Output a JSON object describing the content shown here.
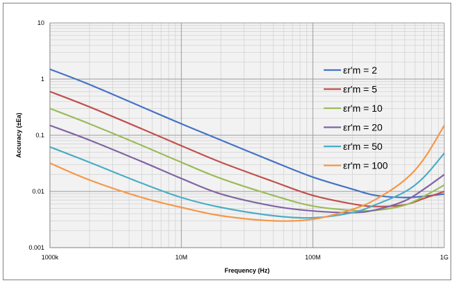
{
  "chart_data": {
    "type": "line",
    "title": "",
    "xlabel": "Frequency (Hz)",
    "ylabel": "Accuracy (±Ea)",
    "x_scale": "log",
    "y_scale": "log",
    "xlim": [
      1000000,
      1000000000
    ],
    "ylim": [
      0.001,
      10
    ],
    "grid": true,
    "legend_position": "right",
    "x_ticks": [
      {
        "value": 1000000,
        "label": "1000k"
      },
      {
        "value": 10000000,
        "label": "10M"
      },
      {
        "value": 100000000,
        "label": "100M"
      },
      {
        "value": 1000000000,
        "label": "1G"
      }
    ],
    "y_ticks": [
      {
        "value": 0.001,
        "label": "0.001"
      },
      {
        "value": 0.01,
        "label": "0.01"
      },
      {
        "value": 0.1,
        "label": "0.1"
      },
      {
        "value": 1,
        "label": "1"
      },
      {
        "value": 10,
        "label": "10"
      }
    ],
    "series": [
      {
        "name": "εr'm = 2",
        "color": "#4472c4",
        "points": [
          [
            1000000,
            1.5
          ],
          [
            2000000,
            0.8
          ],
          [
            5000000,
            0.32
          ],
          [
            10000000,
            0.16
          ],
          [
            20000000,
            0.082
          ],
          [
            50000000,
            0.034
          ],
          [
            100000000,
            0.018
          ],
          [
            200000000,
            0.011
          ],
          [
            300000000,
            0.0085
          ],
          [
            500000000,
            0.0078
          ],
          [
            700000000,
            0.0082
          ],
          [
            1000000000,
            0.009
          ]
        ]
      },
      {
        "name": "εr'm = 5",
        "color": "#c0504d",
        "points": [
          [
            1000000,
            0.6
          ],
          [
            2000000,
            0.32
          ],
          [
            5000000,
            0.13
          ],
          [
            10000000,
            0.065
          ],
          [
            20000000,
            0.033
          ],
          [
            50000000,
            0.015
          ],
          [
            100000000,
            0.0085
          ],
          [
            200000000,
            0.006
          ],
          [
            300000000,
            0.0054
          ],
          [
            500000000,
            0.0058
          ],
          [
            700000000,
            0.0075
          ],
          [
            1000000000,
            0.01
          ]
        ]
      },
      {
        "name": "εr'm = 10",
        "color": "#9bbb59",
        "points": [
          [
            1000000,
            0.3
          ],
          [
            2000000,
            0.16
          ],
          [
            5000000,
            0.066
          ],
          [
            10000000,
            0.033
          ],
          [
            20000000,
            0.017
          ],
          [
            50000000,
            0.0085
          ],
          [
            100000000,
            0.0055
          ],
          [
            200000000,
            0.0046
          ],
          [
            300000000,
            0.0046
          ],
          [
            500000000,
            0.0057
          ],
          [
            700000000,
            0.0082
          ],
          [
            1000000000,
            0.013
          ]
        ]
      },
      {
        "name": "εr'm = 20",
        "color": "#8064a2",
        "points": [
          [
            1000000,
            0.15
          ],
          [
            2000000,
            0.082
          ],
          [
            5000000,
            0.034
          ],
          [
            10000000,
            0.017
          ],
          [
            20000000,
            0.009
          ],
          [
            50000000,
            0.0055
          ],
          [
            100000000,
            0.0045
          ],
          [
            200000000,
            0.0042
          ],
          [
            300000000,
            0.0047
          ],
          [
            500000000,
            0.0068
          ],
          [
            700000000,
            0.011
          ],
          [
            1000000000,
            0.02
          ]
        ]
      },
      {
        "name": "εr'm = 50",
        "color": "#4bacc6",
        "points": [
          [
            1000000,
            0.062
          ],
          [
            2000000,
            0.033
          ],
          [
            5000000,
            0.014
          ],
          [
            10000000,
            0.0078
          ],
          [
            20000000,
            0.0052
          ],
          [
            50000000,
            0.0037
          ],
          [
            100000000,
            0.0034
          ],
          [
            200000000,
            0.0042
          ],
          [
            300000000,
            0.0058
          ],
          [
            500000000,
            0.0098
          ],
          [
            700000000,
            0.018
          ],
          [
            1000000000,
            0.048
          ]
        ]
      },
      {
        "name": "εr'm = 100",
        "color": "#f79646",
        "points": [
          [
            1000000,
            0.032
          ],
          [
            2000000,
            0.016
          ],
          [
            5000000,
            0.0078
          ],
          [
            10000000,
            0.0052
          ],
          [
            20000000,
            0.0037
          ],
          [
            50000000,
            0.003
          ],
          [
            100000000,
            0.0032
          ],
          [
            200000000,
            0.0048
          ],
          [
            300000000,
            0.0072
          ],
          [
            500000000,
            0.016
          ],
          [
            700000000,
            0.038
          ],
          [
            1000000000,
            0.15
          ]
        ]
      }
    ]
  }
}
